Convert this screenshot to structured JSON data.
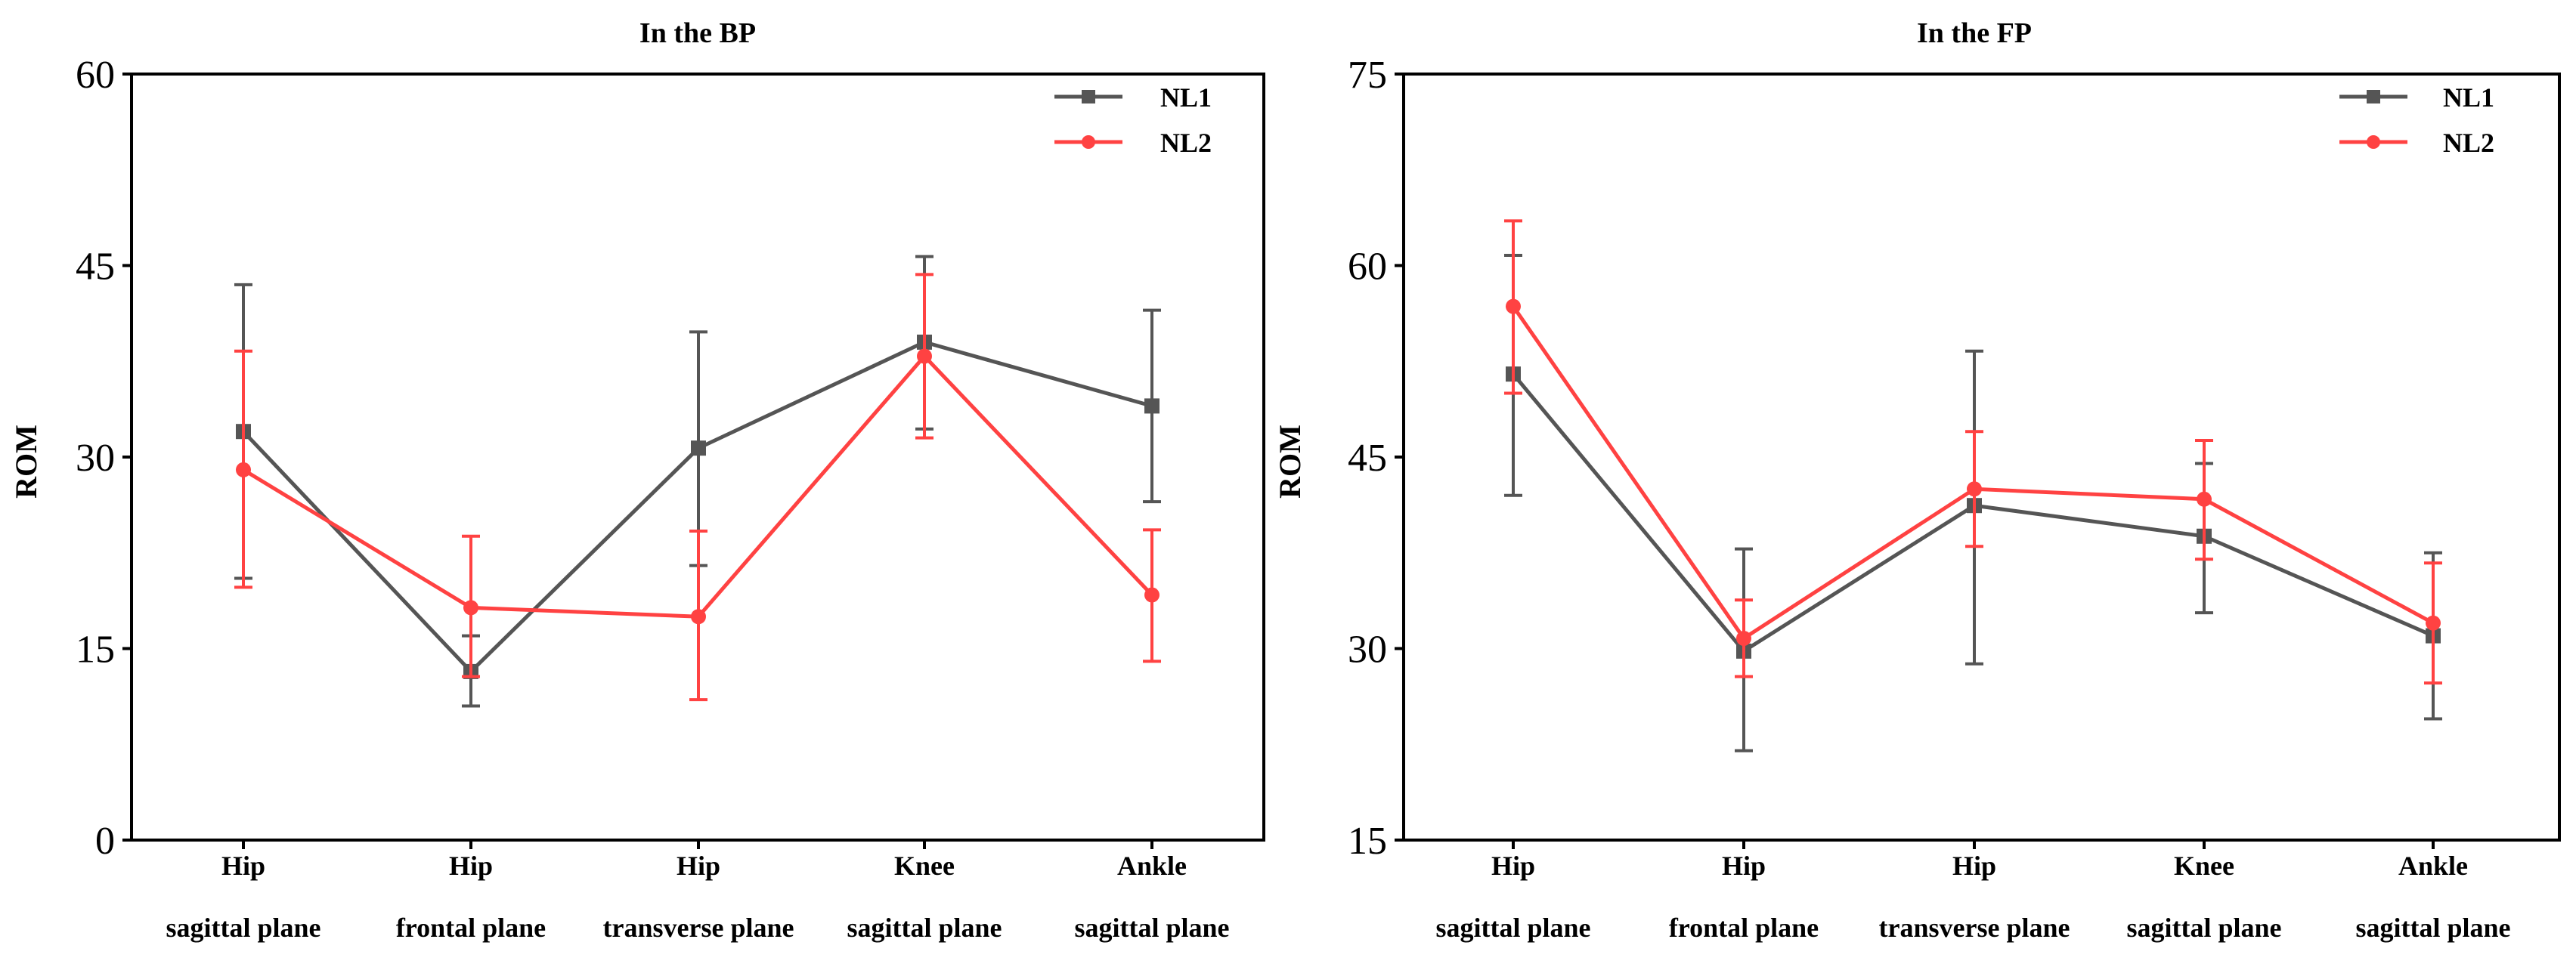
{
  "colors": {
    "nl1": "#555555",
    "nl2": "#ff4242",
    "axis": "#000000"
  },
  "chart_data": [
    {
      "type": "line",
      "title": "In the BP",
      "ylabel": "ROM",
      "xlabel": "",
      "ylim": [
        0,
        60
      ],
      "yticks": [
        0,
        15,
        30,
        45,
        60
      ],
      "categories": [
        [
          "Hip",
          "sagittal plane"
        ],
        [
          "Hip",
          "frontal plane"
        ],
        [
          "Hip",
          "transverse plane"
        ],
        [
          "Knee",
          "sagittal plane"
        ],
        [
          "Ankle",
          "sagittal plane"
        ]
      ],
      "legend_position": "top-right",
      "series": [
        {
          "name": "NL1",
          "marker": "square",
          "color": "#555555",
          "values": [
            32,
            13.2,
            30.7,
            39,
            34
          ],
          "err_upper": [
            43.5,
            16,
            39.8,
            45.7,
            41.5
          ],
          "err_lower": [
            20.5,
            10.5,
            21.5,
            32.2,
            26.5
          ]
        },
        {
          "name": "NL2",
          "marker": "circle",
          "color": "#ff4242",
          "values": [
            29,
            18.2,
            17.5,
            37.9,
            19.2
          ],
          "err_upper": [
            38.3,
            23.8,
            24.2,
            44.3,
            24.3
          ],
          "err_lower": [
            19.8,
            12.8,
            11,
            31.5,
            14
          ]
        }
      ]
    },
    {
      "type": "line",
      "title": "In the FP",
      "ylabel": "ROM",
      "xlabel": "",
      "ylim": [
        15,
        75
      ],
      "yticks": [
        15,
        30,
        45,
        60,
        75
      ],
      "categories": [
        [
          "Hip",
          "sagittal plane"
        ],
        [
          "Hip",
          "frontal plane"
        ],
        [
          "Hip",
          "transverse plane"
        ],
        [
          "Knee",
          "sagittal plane"
        ],
        [
          "Ankle",
          "sagittal plane"
        ]
      ],
      "legend_position": "top-right",
      "series": [
        {
          "name": "NL1",
          "marker": "square",
          "color": "#555555",
          "values": [
            51.5,
            29.8,
            41.2,
            38.8,
            31
          ],
          "err_upper": [
            60.8,
            37.8,
            53.3,
            44.5,
            37.5
          ],
          "err_lower": [
            42,
            22,
            28.8,
            32.8,
            24.5
          ]
        },
        {
          "name": "NL2",
          "marker": "circle",
          "color": "#ff4242",
          "values": [
            56.8,
            30.8,
            42.5,
            41.7,
            32
          ],
          "err_upper": [
            63.5,
            33.8,
            47,
            46.3,
            36.7
          ],
          "err_lower": [
            50,
            27.8,
            38,
            37,
            27.3
          ]
        }
      ]
    }
  ]
}
